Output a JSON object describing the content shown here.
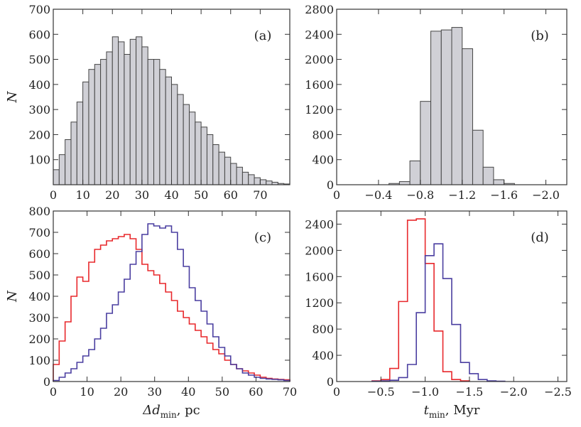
{
  "chart_data": [
    {
      "panel": "a",
      "type": "bar",
      "label": "(a)",
      "ylabel": "N",
      "xlim": [
        0,
        80
      ],
      "ylim": [
        0,
        700
      ],
      "xticks": [
        0,
        10,
        20,
        30,
        40,
        50,
        60,
        70
      ],
      "xtick_labels": [
        "0",
        "10",
        "20",
        "30",
        "40",
        "50",
        "60",
        "70"
      ],
      "yticks": [
        100,
        200,
        300,
        400,
        500,
        600,
        700
      ],
      "ytick_labels": [
        "100",
        "200",
        "300",
        "400",
        "500",
        "600",
        "700"
      ],
      "bin_start": 0,
      "bin_width": 2,
      "series": [
        {
          "name": "all",
          "color": "#d0d0d6",
          "stroke": "#444444",
          "values": [
            60,
            120,
            180,
            250,
            330,
            410,
            460,
            480,
            500,
            530,
            590,
            570,
            520,
            580,
            590,
            550,
            500,
            500,
            460,
            430,
            400,
            360,
            320,
            290,
            250,
            230,
            200,
            160,
            130,
            110,
            85,
            70,
            50,
            40,
            28,
            20,
            15,
            10,
            5,
            3
          ]
        }
      ]
    },
    {
      "panel": "b",
      "type": "bar",
      "label": "(b)",
      "xlim": [
        0,
        -2.2
      ],
      "ylim": [
        0,
        2800
      ],
      "xticks": [
        0,
        -0.4,
        -0.8,
        -1.2,
        -1.6,
        -2.0
      ],
      "xtick_labels": [
        "0",
        "−0.4",
        "−0.8",
        "−1.2",
        "−1.6",
        "−2.0"
      ],
      "yticks": [
        0,
        400,
        800,
        1200,
        1600,
        2000,
        2400,
        2800
      ],
      "ytick_labels": [
        "0",
        "400",
        "800",
        "1200",
        "1600",
        "2000",
        "2400",
        "2800"
      ],
      "bin_start": -0.5,
      "bin_width": -0.1,
      "series": [
        {
          "name": "all",
          "color": "#d0d0d6",
          "stroke": "#444444",
          "values": [
            20,
            50,
            380,
            1330,
            2450,
            2470,
            2510,
            2170,
            870,
            280,
            80,
            20
          ]
        }
      ]
    },
    {
      "panel": "c",
      "type": "line",
      "label": "(c)",
      "xlabel": "Δd",
      "xlabel_sub": "min",
      "xlabel_suffix": ", pc",
      "ylabel": "N",
      "xlim": [
        0,
        70
      ],
      "ylim": [
        0,
        800
      ],
      "xticks": [
        0,
        10,
        20,
        30,
        40,
        50,
        60,
        70
      ],
      "xtick_labels": [
        "0",
        "10",
        "20",
        "30",
        "40",
        "50",
        "60",
        "70"
      ],
      "yticks": [
        0,
        100,
        200,
        300,
        400,
        500,
        600,
        700,
        800
      ],
      "ytick_labels": [
        "0",
        "100",
        "200",
        "300",
        "400",
        "500",
        "600",
        "700",
        "800"
      ],
      "bin_start": 0,
      "bin_width": 1.75,
      "series": [
        {
          "name": "red",
          "color": "#e8282c",
          "values": [
            80,
            190,
            280,
            400,
            490,
            470,
            560,
            620,
            640,
            660,
            670,
            680,
            690,
            670,
            620,
            550,
            520,
            500,
            460,
            420,
            380,
            330,
            300,
            270,
            240,
            210,
            180,
            150,
            130,
            100,
            80,
            60,
            50,
            40,
            30,
            20,
            15,
            12,
            10,
            8
          ]
        },
        {
          "name": "blue",
          "color": "#4a3ea0",
          "values": [
            5,
            20,
            40,
            60,
            90,
            120,
            150,
            200,
            250,
            320,
            360,
            420,
            480,
            550,
            610,
            690,
            740,
            730,
            720,
            730,
            700,
            620,
            540,
            440,
            380,
            330,
            270,
            210,
            160,
            120,
            80,
            60,
            40,
            30,
            20,
            15,
            12,
            10,
            8,
            5
          ]
        }
      ]
    },
    {
      "panel": "d",
      "type": "line",
      "label": "(d)",
      "xlabel": "t",
      "xlabel_sub": "min",
      "xlabel_suffix": ", Myr",
      "xlim": [
        0,
        -2.6
      ],
      "ylim": [
        0,
        2600
      ],
      "xticks": [
        0,
        -0.5,
        -1.0,
        -1.5,
        -2.0,
        -2.5
      ],
      "xtick_labels": [
        "0",
        "−0.5",
        "−1.0",
        "−1.5",
        "−2.0",
        "−2.5"
      ],
      "yticks": [
        0,
        400,
        800,
        1200,
        1600,
        2000,
        2400
      ],
      "ytick_labels": [
        "0",
        "400",
        "800",
        "1200",
        "1600",
        "2000",
        "2400"
      ],
      "bin_start": -0.4,
      "bin_width": -0.1,
      "series": [
        {
          "name": "red",
          "color": "#e8282c",
          "values": [
            10,
            30,
            200,
            1220,
            2460,
            2480,
            1800,
            770,
            150,
            30,
            10
          ]
        },
        {
          "name": "blue",
          "color": "#4a3ea0",
          "values": [
            5,
            10,
            20,
            60,
            260,
            1050,
            1920,
            2100,
            1570,
            870,
            290,
            120,
            30,
            10,
            5
          ]
        }
      ],
      "blue_bin_start": -0.4
    }
  ]
}
